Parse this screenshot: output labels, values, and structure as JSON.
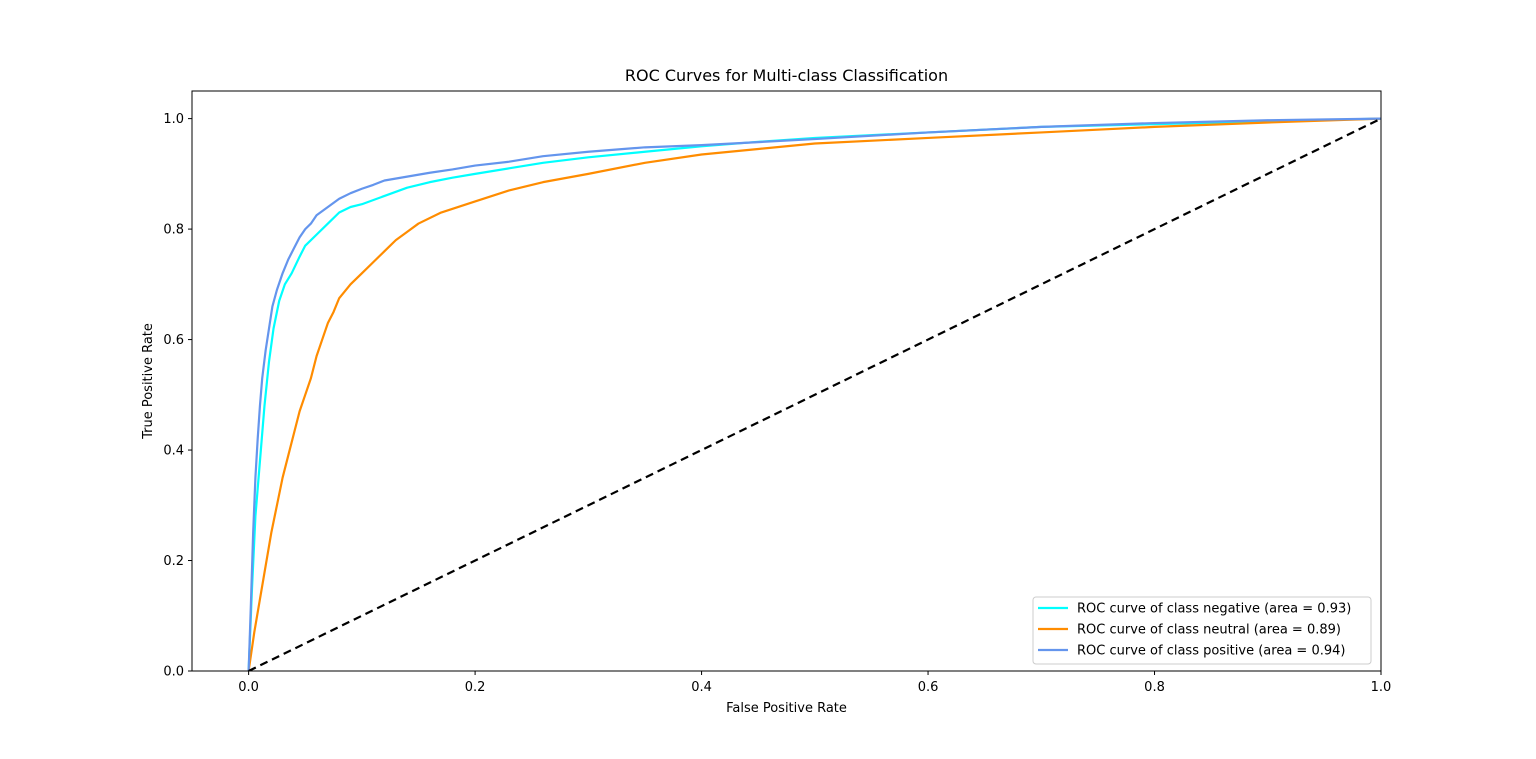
{
  "chart_data": {
    "type": "line",
    "title": "ROC Curves for Multi-class Classification",
    "xlabel": "False Positive Rate",
    "ylabel": "True Positive Rate",
    "xlim": [
      -0.05,
      1.0
    ],
    "ylim": [
      0.0,
      1.05
    ],
    "xticks": [
      "0.0",
      "0.2",
      "0.4",
      "0.6",
      "0.8",
      "1.0"
    ],
    "xtick_values": [
      0.0,
      0.2,
      0.4,
      0.6,
      0.8,
      1.0
    ],
    "yticks": [
      "0.0",
      "0.2",
      "0.4",
      "0.6",
      "0.8",
      "1.0"
    ],
    "ytick_values": [
      0.0,
      0.2,
      0.4,
      0.6,
      0.8,
      1.0
    ],
    "grid": false,
    "legend_position": "bottom-right",
    "series": [
      {
        "name": "ROC curve of class negative (area = 0.93)",
        "color": "#00ffff",
        "x": [
          0.0,
          0.003,
          0.006,
          0.01,
          0.014,
          0.018,
          0.022,
          0.027,
          0.032,
          0.038,
          0.045,
          0.05,
          0.06,
          0.07,
          0.08,
          0.09,
          0.1,
          0.12,
          0.14,
          0.16,
          0.18,
          0.2,
          0.23,
          0.26,
          0.3,
          0.35,
          0.4,
          0.45,
          0.5,
          0.6,
          0.7,
          0.8,
          0.9,
          1.0
        ],
        "y": [
          0.0,
          0.15,
          0.28,
          0.38,
          0.48,
          0.56,
          0.62,
          0.67,
          0.7,
          0.72,
          0.75,
          0.77,
          0.79,
          0.81,
          0.83,
          0.84,
          0.845,
          0.86,
          0.875,
          0.885,
          0.893,
          0.9,
          0.91,
          0.92,
          0.93,
          0.94,
          0.95,
          0.958,
          0.965,
          0.975,
          0.985,
          0.99,
          0.995,
          1.0
        ]
      },
      {
        "name": "ROC curve of class neutral (area = 0.89)",
        "color": "#ff8c00",
        "x": [
          0.0,
          0.005,
          0.01,
          0.015,
          0.02,
          0.025,
          0.03,
          0.035,
          0.04,
          0.045,
          0.05,
          0.055,
          0.06,
          0.065,
          0.07,
          0.075,
          0.08,
          0.09,
          0.1,
          0.11,
          0.12,
          0.13,
          0.14,
          0.15,
          0.17,
          0.2,
          0.23,
          0.26,
          0.3,
          0.35,
          0.4,
          0.45,
          0.5,
          0.6,
          0.7,
          0.8,
          0.9,
          1.0
        ],
        "y": [
          0.0,
          0.07,
          0.13,
          0.19,
          0.25,
          0.3,
          0.35,
          0.39,
          0.43,
          0.47,
          0.5,
          0.53,
          0.57,
          0.6,
          0.63,
          0.65,
          0.675,
          0.7,
          0.72,
          0.74,
          0.76,
          0.78,
          0.795,
          0.81,
          0.83,
          0.85,
          0.87,
          0.885,
          0.9,
          0.92,
          0.935,
          0.945,
          0.955,
          0.965,
          0.975,
          0.985,
          0.993,
          1.0
        ]
      },
      {
        "name": "ROC curve of class positive (area = 0.94)",
        "color": "#6495ed",
        "x": [
          0.0,
          0.002,
          0.004,
          0.006,
          0.008,
          0.01,
          0.012,
          0.015,
          0.018,
          0.021,
          0.025,
          0.03,
          0.035,
          0.04,
          0.045,
          0.05,
          0.055,
          0.06,
          0.07,
          0.08,
          0.09,
          0.1,
          0.11,
          0.12,
          0.14,
          0.16,
          0.18,
          0.2,
          0.23,
          0.26,
          0.3,
          0.35,
          0.4,
          0.5,
          0.6,
          0.7,
          0.8,
          0.9,
          1.0
        ],
        "y": [
          0.0,
          0.12,
          0.25,
          0.35,
          0.42,
          0.48,
          0.53,
          0.58,
          0.62,
          0.66,
          0.69,
          0.72,
          0.745,
          0.765,
          0.785,
          0.8,
          0.81,
          0.825,
          0.84,
          0.855,
          0.865,
          0.873,
          0.88,
          0.888,
          0.895,
          0.902,
          0.908,
          0.915,
          0.922,
          0.932,
          0.94,
          0.948,
          0.952,
          0.963,
          0.975,
          0.985,
          0.992,
          0.997,
          1.0
        ]
      }
    ],
    "reference_line": {
      "style": "dashed",
      "color": "#000000",
      "x": [
        0.0,
        1.0
      ],
      "y": [
        0.0,
        1.0
      ]
    }
  }
}
